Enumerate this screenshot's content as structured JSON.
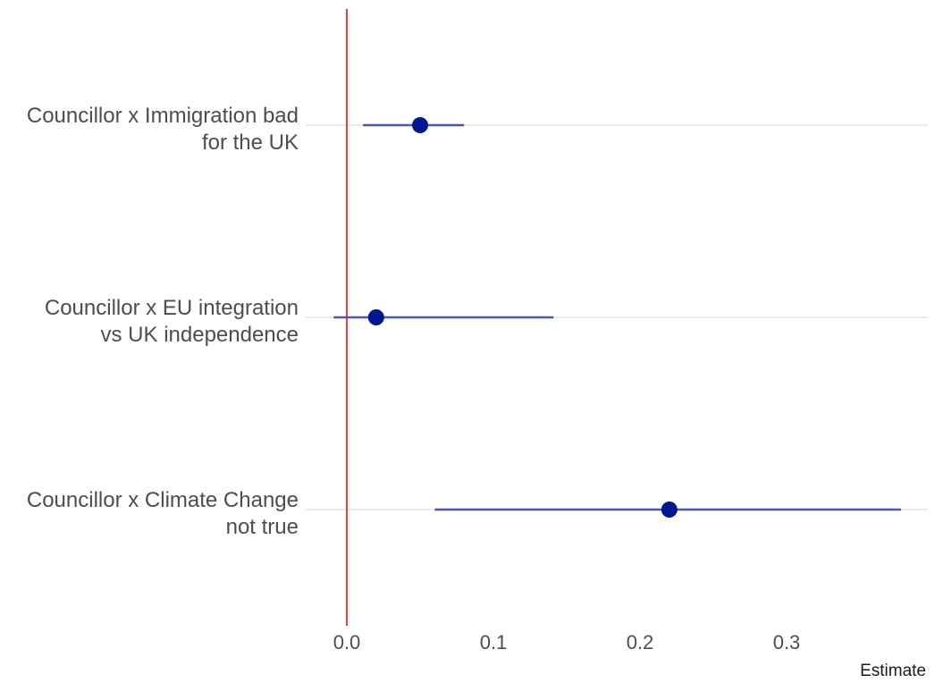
{
  "chart_data": {
    "type": "scatter",
    "subtype": "coefficient-plot",
    "title": "",
    "xlabel": "Estimate",
    "ylabel": "",
    "xlim": [
      -0.02,
      0.395
    ],
    "xticks": [
      0.0,
      0.1,
      0.2,
      0.3
    ],
    "xtick_labels": [
      "0.0",
      "0.1",
      "0.2",
      "0.3"
    ],
    "reference_line": {
      "x": 0,
      "color": "#e8432e"
    },
    "grid": {
      "horizontal": true,
      "vertical": false
    },
    "legend": "none",
    "point_color": "#00178f",
    "interval_color": "#4a55b5",
    "terms": [
      {
        "label_lines": [
          "Councillor x Immigration bad",
          "for the UK"
        ],
        "estimate": 0.05,
        "conf_low": 0.011,
        "conf_high": 0.08
      },
      {
        "label_lines": [
          "Councillor x EU integration",
          "vs UK independence"
        ],
        "estimate": 0.02,
        "conf_low": -0.009,
        "conf_high": 0.141
      },
      {
        "label_lines": [
          "Councillor x Climate Change",
          "not true"
        ],
        "estimate": 0.22,
        "conf_low": 0.06,
        "conf_high": 0.378
      }
    ]
  }
}
